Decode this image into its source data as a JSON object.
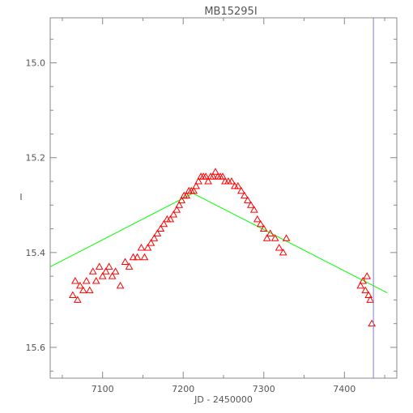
{
  "chart_data": {
    "type": "scatter",
    "title": "MB15295I",
    "xlabel": "JD - 2450000",
    "ylabel": "I",
    "xlim": [
      7035,
      7465
    ],
    "ylim": [
      15.665,
      14.905
    ],
    "y_inverted": true,
    "grid": false,
    "x_ticks": [
      7100,
      7200,
      7300,
      7400
    ],
    "x_tick_labels": [
      "7100",
      "7200",
      "7300",
      "7400"
    ],
    "y_ticks": [
      15.0,
      15.2,
      15.4,
      15.6
    ],
    "y_tick_labels": [
      "15.0",
      "15.2",
      "15.4",
      "15.6"
    ],
    "colors": {
      "points": "#ff0000",
      "fit": "#00ff00",
      "marker_line": "#8080c0",
      "axes": "#888888"
    },
    "series": [
      {
        "kind": "points",
        "marker": "triangle",
        "points": [
          [
            7063,
            15.49
          ],
          [
            7066,
            15.46
          ],
          [
            7069,
            15.5
          ],
          [
            7072,
            15.47
          ],
          [
            7076,
            15.48
          ],
          [
            7080,
            15.46
          ],
          [
            7084,
            15.48
          ],
          [
            7088,
            15.44
          ],
          [
            7092,
            15.46
          ],
          [
            7096,
            15.43
          ],
          [
            7100,
            15.45
          ],
          [
            7104,
            15.44
          ],
          [
            7108,
            15.43
          ],
          [
            7112,
            15.45
          ],
          [
            7116,
            15.44
          ],
          [
            7122,
            15.47
          ],
          [
            7128,
            15.42
          ],
          [
            7133,
            15.43
          ],
          [
            7138,
            15.41
          ],
          [
            7143,
            15.41
          ],
          [
            7148,
            15.39
          ],
          [
            7152,
            15.41
          ],
          [
            7156,
            15.39
          ],
          [
            7160,
            15.38
          ],
          [
            7164,
            15.37
          ],
          [
            7168,
            15.36
          ],
          [
            7172,
            15.35
          ],
          [
            7176,
            15.34
          ],
          [
            7180,
            15.33
          ],
          [
            7184,
            15.33
          ],
          [
            7188,
            15.32
          ],
          [
            7192,
            15.31
          ],
          [
            7195,
            15.3
          ],
          [
            7198,
            15.29
          ],
          [
            7201,
            15.28
          ],
          [
            7204,
            15.28
          ],
          [
            7207,
            15.27
          ],
          [
            7210,
            15.27
          ],
          [
            7213,
            15.27
          ],
          [
            7216,
            15.26
          ],
          [
            7219,
            15.25
          ],
          [
            7222,
            15.24
          ],
          [
            7225,
            15.24
          ],
          [
            7228,
            15.24
          ],
          [
            7231,
            15.25
          ],
          [
            7234,
            15.24
          ],
          [
            7237,
            15.24
          ],
          [
            7240,
            15.23
          ],
          [
            7243,
            15.24
          ],
          [
            7246,
            15.24
          ],
          [
            7249,
            15.24
          ],
          [
            7252,
            15.25
          ],
          [
            7256,
            15.25
          ],
          [
            7260,
            15.25
          ],
          [
            7264,
            15.26
          ],
          [
            7268,
            15.26
          ],
          [
            7272,
            15.27
          ],
          [
            7276,
            15.28
          ],
          [
            7280,
            15.29
          ],
          [
            7284,
            15.3
          ],
          [
            7288,
            15.31
          ],
          [
            7292,
            15.33
          ],
          [
            7296,
            15.34
          ],
          [
            7300,
            15.35
          ],
          [
            7304,
            15.37
          ],
          [
            7308,
            15.36
          ],
          [
            7314,
            15.37
          ],
          [
            7319,
            15.39
          ],
          [
            7324,
            15.4
          ],
          [
            7328,
            15.37
          ],
          [
            7420,
            15.47
          ],
          [
            7423,
            15.46
          ],
          [
            7426,
            15.48
          ],
          [
            7428,
            15.45
          ],
          [
            7430,
            15.49
          ],
          [
            7432,
            15.5
          ],
          [
            7434,
            15.55
          ]
        ]
      },
      {
        "kind": "line",
        "points": [
          [
            7035,
            15.43
          ],
          [
            7212,
            15.275
          ],
          [
            7453,
            15.485
          ]
        ]
      },
      {
        "kind": "vline",
        "x": 7436
      }
    ]
  }
}
